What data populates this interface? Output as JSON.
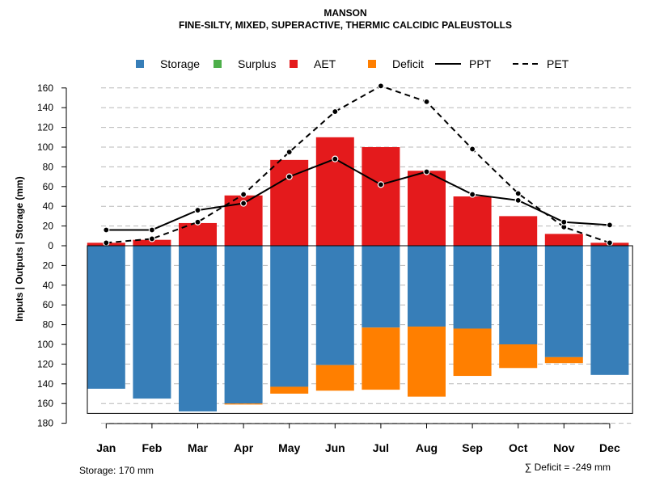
{
  "chart_data": {
    "type": "bar",
    "title": "MANSON",
    "subtitle": "FINE-SILTY, MIXED, SUPERACTIVE, THERMIC CALCIDIC PALEUSTOLLS",
    "ylabel": "Inputs | Outputs | Storage    (mm)",
    "categories": [
      "Jan",
      "Feb",
      "Mar",
      "Apr",
      "May",
      "Jun",
      "Jul",
      "Aug",
      "Sep",
      "Oct",
      "Nov",
      "Dec"
    ],
    "ylim": [
      -180,
      170
    ],
    "yticks": [
      160,
      140,
      120,
      100,
      80,
      60,
      40,
      20,
      0,
      -20,
      -40,
      -60,
      -80,
      -100,
      -120,
      -140,
      -160,
      -180
    ],
    "ytick_labels": [
      "160",
      "140",
      "120",
      "100",
      "80",
      "60",
      "40",
      "20",
      "0",
      "20",
      "40",
      "60",
      "80",
      "100",
      "120",
      "140",
      "160",
      "180"
    ],
    "series": [
      {
        "name": "Storage",
        "color": "#377EB8",
        "values": [
          145,
          155,
          168,
          160,
          143,
          121,
          83,
          82,
          84,
          100,
          113,
          131
        ]
      },
      {
        "name": "Surplus",
        "color": "#4DAF4A",
        "values": [
          0,
          0,
          0,
          0,
          0,
          0,
          0,
          0,
          0,
          0,
          0,
          0
        ]
      },
      {
        "name": "AET",
        "color": "#E41A1C",
        "values": [
          3,
          6,
          23,
          51,
          87,
          110,
          100,
          76,
          50,
          30,
          12,
          3
        ]
      },
      {
        "name": "Deficit",
        "color": "#FF7F00",
        "values": [
          0,
          0,
          0,
          1,
          7,
          26,
          63,
          71,
          48,
          24,
          6,
          0
        ]
      },
      {
        "name": "PPT",
        "color": "#000000",
        "values": [
          16,
          16,
          36,
          43,
          70,
          88,
          62,
          75,
          52,
          46,
          24,
          21
        ]
      },
      {
        "name": "PET",
        "color": "#000000",
        "values": [
          3,
          7,
          24,
          52,
          95,
          136,
          162,
          146,
          98,
          53,
          19,
          3
        ]
      }
    ],
    "legend": [
      "Storage",
      "Surplus",
      "AET",
      "Deficit",
      "PPT",
      "PET"
    ],
    "legend_position": "top",
    "storage_capacity": 170,
    "grid": "horizontal dashed",
    "annotations": {
      "storage": "Storage: 170 mm",
      "deficit": "∑ Deficit = -249 mm"
    }
  }
}
